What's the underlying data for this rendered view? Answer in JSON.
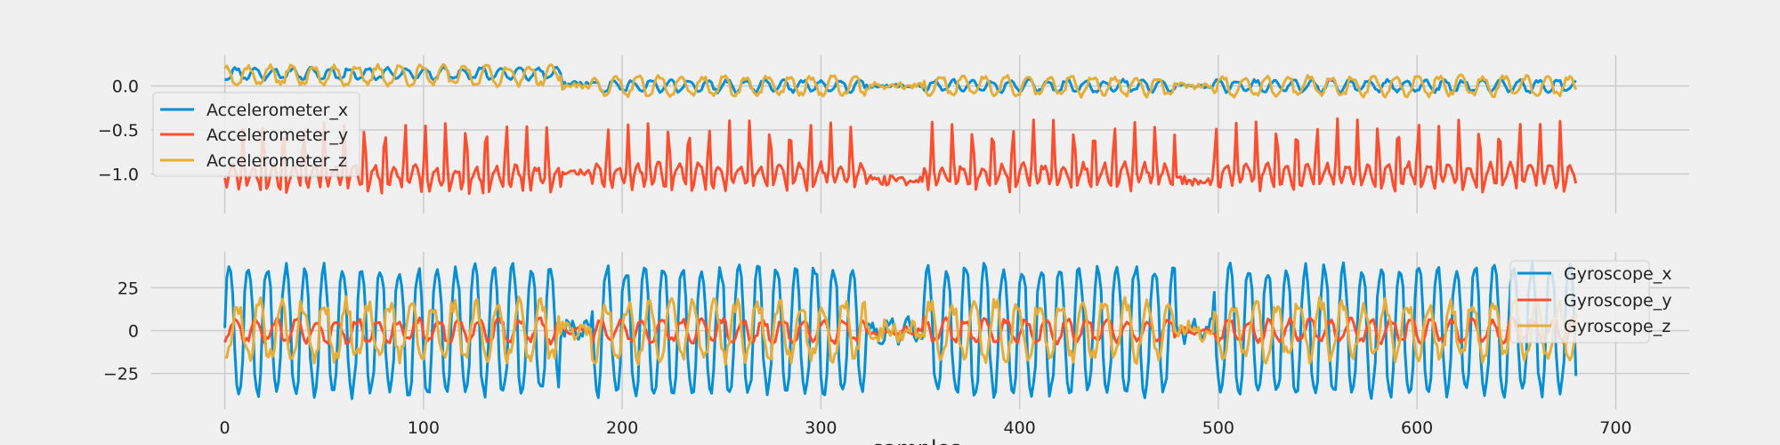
{
  "chart_data": [
    {
      "type": "line",
      "xlabel": "",
      "xlim": [
        -37,
        737
      ],
      "ylim": [
        -1.45,
        0.35
      ],
      "xticks": [
        0,
        100,
        200,
        300,
        400,
        500,
        600,
        700
      ],
      "yticks": [
        0.0,
        -0.5,
        -1.0
      ],
      "ytick_labels": [
        "0.0",
        "−0.5",
        "−1.0"
      ],
      "grid": true,
      "legend_position": "left",
      "n_samples": 681,
      "series": [
        {
          "name": "Accelerometer_x",
          "color": "#008fd5",
          "baseline": 0.07,
          "amplitude": 0.06,
          "noise": 0.02,
          "seed": 11,
          "segments": [
            [
              0,
              170,
              0.14
            ],
            [
              170,
              185,
              0.03
            ],
            [
              185,
              690,
              0.0
            ]
          ]
        },
        {
          "name": "Accelerometer_y",
          "color": "#fc4f30",
          "baseline": -1.1,
          "amplitude": 0.55,
          "noise": 0.05,
          "seed": 23,
          "segments": [
            [
              0,
              170,
              -1.1
            ],
            [
              170,
              185,
              -1.0
            ],
            [
              185,
              690,
              -1.08
            ]
          ]
        },
        {
          "name": "Accelerometer_z",
          "color": "#e5ae38",
          "baseline": 0.05,
          "amplitude": 0.1,
          "noise": 0.03,
          "seed": 37,
          "segments": [
            [
              0,
              170,
              0.12
            ],
            [
              170,
              185,
              0.0
            ],
            [
              185,
              690,
              0.0
            ]
          ]
        }
      ]
    },
    {
      "type": "line",
      "xlabel": "samples",
      "xlim": [
        -37,
        737
      ],
      "ylim": [
        -46,
        46
      ],
      "xticks": [
        0,
        100,
        200,
        300,
        400,
        500,
        600,
        700
      ],
      "xtick_labels": [
        "0",
        "100",
        "200",
        "300",
        "400",
        "500",
        "600",
        "700"
      ],
      "yticks": [
        25,
        0,
        -25
      ],
      "ytick_labels": [
        "25",
        "0",
        "−25"
      ],
      "grid": true,
      "legend_position": "top-right",
      "n_samples": 681,
      "series": [
        {
          "name": "Gyroscope_x",
          "color": "#008fd5",
          "amplitude": 36,
          "noise": 4,
          "seed": 51
        },
        {
          "name": "Gyroscope_y",
          "color": "#fc4f30",
          "amplitude": 6,
          "noise": 2,
          "seed": 63
        },
        {
          "name": "Gyroscope_z",
          "color": "#e5ae38",
          "amplitude": 15,
          "noise": 5,
          "seed": 79
        }
      ]
    }
  ]
}
